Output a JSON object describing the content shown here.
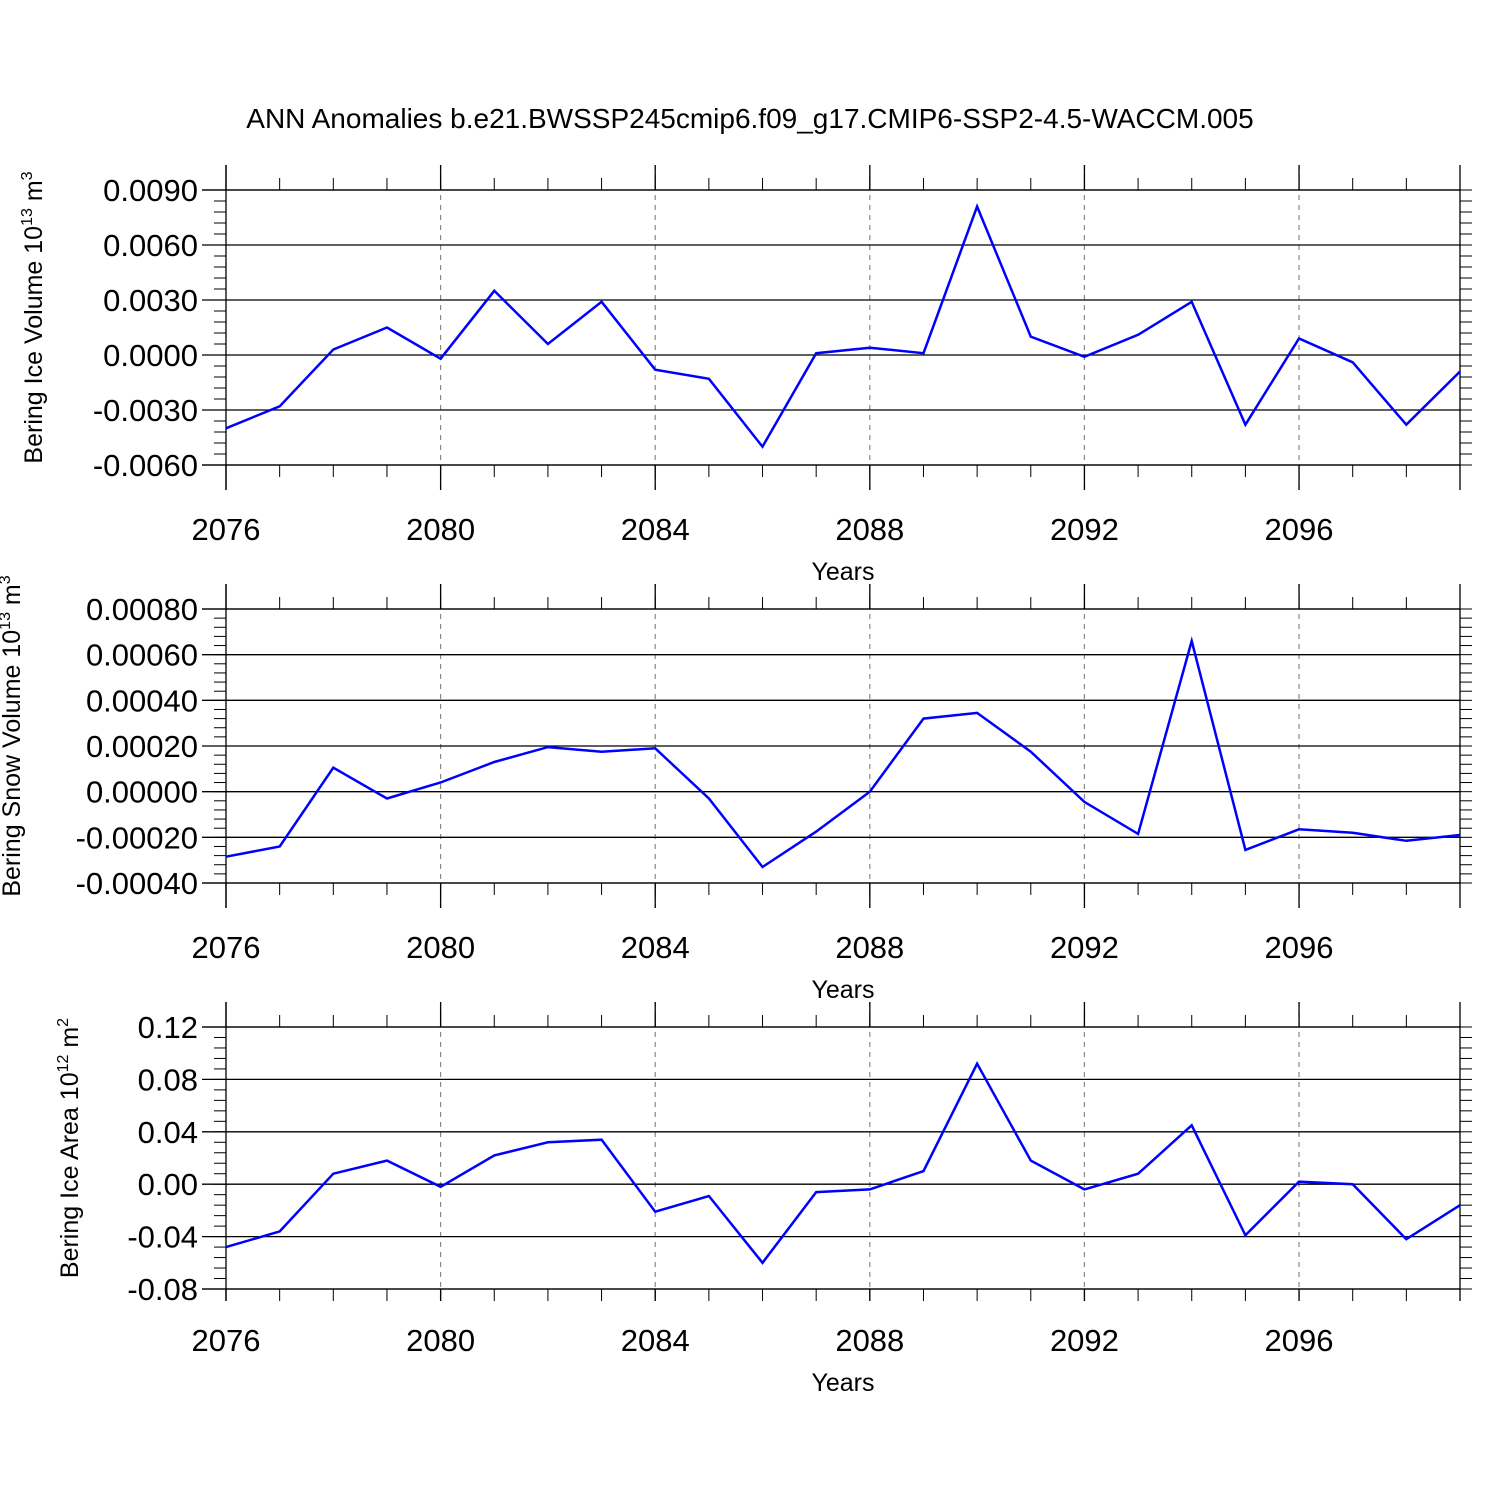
{
  "title": "ANN Anomalies b.e21.BWSSP245cmip6.f09_g17.CMIP6-SSP2-4.5-WACCM.005",
  "colors": {
    "series": "#0000ff",
    "axis": "#000000",
    "grid": "#888888"
  },
  "chart_data": [
    {
      "type": "line",
      "ylabel_main": "Bering Ice Volume 10",
      "ylabel_exp": "13",
      "ylabel_unit": " m",
      "ylabel_unit_exp": "3",
      "xlabel": "Years",
      "xlim": [
        2076,
        2099
      ],
      "ylim": [
        -0.007,
        0.009
      ],
      "xticks": [
        "2076",
        "2080",
        "2084",
        "2088",
        "2092",
        "2096"
      ],
      "yticks": [
        "-0.0060",
        "-0.0030",
        "0.0000",
        "0.0030",
        "0.0060",
        "0.0090"
      ],
      "x": [
        2076,
        2077,
        2078,
        2079,
        2080,
        2081,
        2082,
        2083,
        2084,
        2085,
        2086,
        2087,
        2088,
        2089,
        2090,
        2091,
        2092,
        2093,
        2094,
        2095,
        2096,
        2097,
        2098,
        2099
      ],
      "series": [
        {
          "values": [
            -0.004,
            -0.0028,
            0.0003,
            0.0015,
            -0.0002,
            0.0035,
            0.0006,
            0.0029,
            -0.0008,
            -0.0013,
            -0.005,
            0.0001,
            0.0004,
            0.0001,
            0.0081,
            0.001,
            -0.0001,
            0.0011,
            0.0029,
            -0.0038,
            0.0009,
            -0.0004,
            -0.0038,
            -0.0009
          ]
        }
      ]
    },
    {
      "type": "line",
      "ylabel_main": "Bering Snow Volume 10",
      "ylabel_exp": "13",
      "ylabel_unit": " m",
      "ylabel_unit_exp": "3",
      "xlabel": "Years",
      "xlim": [
        2076,
        2099
      ],
      "ylim": [
        -0.0004,
        0.0008
      ],
      "xticks": [
        "2076",
        "2080",
        "2084",
        "2088",
        "2092",
        "2096"
      ],
      "yticks": [
        "-0.00040",
        "-0.00020",
        "0.00000",
        "0.00020",
        "0.00040",
        "0.00060",
        "0.00080"
      ],
      "x": [
        2076,
        2077,
        2078,
        2079,
        2080,
        2081,
        2082,
        2083,
        2084,
        2085,
        2086,
        2087,
        2088,
        2089,
        2090,
        2091,
        2092,
        2093,
        2094,
        2095,
        2096,
        2097,
        2098,
        2099
      ],
      "series": [
        {
          "values": [
            -0.000285,
            -0.00024,
            0.000105,
            -3e-05,
            4e-05,
            0.00013,
            0.000195,
            0.000175,
            0.00019,
            -3e-05,
            -0.00033,
            -0.000175,
            0.0,
            0.00032,
            0.000345,
            0.000175,
            -4.5e-05,
            -0.000185,
            0.00066,
            -0.000255,
            -0.000165,
            -0.00018,
            -0.000215,
            -0.00019
          ]
        }
      ]
    },
    {
      "type": "line",
      "ylabel_main": "Bering Ice Area 10",
      "ylabel_exp": "12",
      "ylabel_unit": " m",
      "ylabel_unit_exp": "2",
      "xlabel": "Years",
      "xlim": [
        2076,
        2099
      ],
      "ylim": [
        -0.09,
        0.12
      ],
      "xticks": [
        "2076",
        "2080",
        "2084",
        "2088",
        "2092",
        "2096"
      ],
      "yticks": [
        "-0.08",
        "-0.04",
        "0.00",
        "0.04",
        "0.08",
        "0.12"
      ],
      "x": [
        2076,
        2077,
        2078,
        2079,
        2080,
        2081,
        2082,
        2083,
        2084,
        2085,
        2086,
        2087,
        2088,
        2089,
        2090,
        2091,
        2092,
        2093,
        2094,
        2095,
        2096,
        2097,
        2098,
        2099
      ],
      "series": [
        {
          "values": [
            -0.048,
            -0.036,
            0.008,
            0.018,
            -0.002,
            0.022,
            0.032,
            0.034,
            -0.021,
            -0.009,
            -0.06,
            -0.006,
            -0.004,
            0.01,
            0.092,
            0.018,
            -0.004,
            0.008,
            0.045,
            -0.039,
            0.002,
            0.0,
            -0.042,
            -0.016
          ]
        }
      ]
    }
  ]
}
